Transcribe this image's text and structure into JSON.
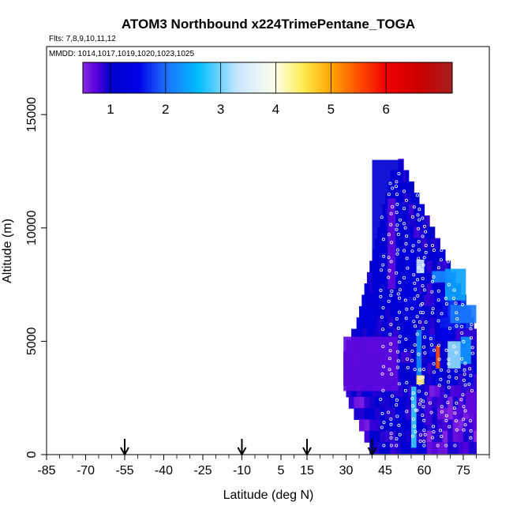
{
  "chart_data": {
    "type": "heatmap",
    "title": "ATOM3 Northbound x224TrimePentane_TOGA",
    "subtitle_flights": "Flts: 7,8,9,10,11,12",
    "subtitle_dates": "MMDD: 1014,1017,1019,1020,1023,1025",
    "xlabel": "Latitude (deg N)",
    "ylabel": "Altitude (m)",
    "xlim": [
      -85,
      85
    ],
    "ylim": [
      0,
      18000
    ],
    "x_ticks": [
      "-85",
      "-70",
      "-55",
      "-40",
      "-25",
      "-10",
      "5",
      "15",
      "30",
      "45",
      "60",
      "75"
    ],
    "y_ticks": [
      "0",
      "5000",
      "10000",
      "15000"
    ],
    "colorbar": {
      "ticks": [
        "1",
        "2",
        "3",
        "4",
        "5",
        "6"
      ],
      "range": [
        0.5,
        7.2
      ]
    },
    "arrows_lat": [
      -55,
      -10,
      15,
      40
    ],
    "cross_section": [
      {
        "alt": 12800,
        "lat_min": 50.0,
        "lat_max": 52.0
      },
      {
        "alt": 12300,
        "lat_min": 47.0,
        "lat_max": 54.0
      },
      {
        "alt": 11800,
        "lat_min": 46.0,
        "lat_max": 56.0
      },
      {
        "alt": 11300,
        "lat_min": 45.0,
        "lat_max": 58.0
      },
      {
        "alt": 10800,
        "lat_min": 44.0,
        "lat_max": 60.0
      },
      {
        "alt": 10300,
        "lat_min": 43.0,
        "lat_max": 62.0
      },
      {
        "alt": 9800,
        "lat_min": 42.0,
        "lat_max": 64.0
      },
      {
        "alt": 9300,
        "lat_min": 41.0,
        "lat_max": 66.0
      },
      {
        "alt": 8800,
        "lat_min": 40.0,
        "lat_max": 68.0
      },
      {
        "alt": 8300,
        "lat_min": 39.0,
        "lat_max": 70.0
      },
      {
        "alt": 7800,
        "lat_min": 38.0,
        "lat_max": 72.0
      },
      {
        "alt": 7300,
        "lat_min": 37.0,
        "lat_max": 74.0
      },
      {
        "alt": 6800,
        "lat_min": 36.0,
        "lat_max": 76.0
      },
      {
        "alt": 6300,
        "lat_min": 35.0,
        "lat_max": 78.0
      },
      {
        "alt": 5800,
        "lat_min": 34.0,
        "lat_max": 79.0
      },
      {
        "alt": 5300,
        "lat_min": 32.0,
        "lat_max": 80.0
      },
      {
        "alt": 4800,
        "lat_min": 30.0,
        "lat_max": 80.0
      },
      {
        "alt": 4300,
        "lat_min": 29.0,
        "lat_max": 80.0
      },
      {
        "alt": 3800,
        "lat_min": 29.0,
        "lat_max": 80.0
      },
      {
        "alt": 3300,
        "lat_min": 29.0,
        "lat_max": 80.0
      },
      {
        "alt": 2800,
        "lat_min": 30.0,
        "lat_max": 80.0
      },
      {
        "alt": 2300,
        "lat_min": 31.0,
        "lat_max": 80.0
      },
      {
        "alt": 1800,
        "lat_min": 33.0,
        "lat_max": 80.0
      },
      {
        "alt": 1300,
        "lat_min": 35.0,
        "lat_max": 80.0
      },
      {
        "alt": 800,
        "lat_min": 37.0,
        "lat_max": 80.0
      },
      {
        "alt": 300,
        "lat_min": 39.0,
        "lat_max": 80.0
      }
    ],
    "features": [
      {
        "lat_min": 29,
        "lat_max": 50,
        "alt_min": 2800,
        "alt_max": 5200,
        "value": 0.7
      },
      {
        "lat_min": 40,
        "lat_max": 52,
        "alt_min": 6500,
        "alt_max": 13000,
        "value": 1.1
      },
      {
        "lat_min": 52,
        "lat_max": 58,
        "alt_min": 6000,
        "alt_max": 9000,
        "value": 1.3
      },
      {
        "lat_min": 70,
        "lat_max": 80,
        "alt_min": 5800,
        "alt_max": 6600,
        "value": 2.1
      },
      {
        "lat_min": 68,
        "lat_max": 76,
        "alt_min": 6800,
        "alt_max": 8200,
        "value": 2.4
      },
      {
        "lat_min": 69,
        "lat_max": 74,
        "alt_min": 3800,
        "alt_max": 5000,
        "value": 3.1
      },
      {
        "lat_min": 74,
        "lat_max": 78,
        "alt_min": 4000,
        "alt_max": 5200,
        "value": 2.3
      },
      {
        "lat_min": 55,
        "lat_max": 57,
        "alt_min": 300,
        "alt_max": 3000,
        "value": 2.8
      },
      {
        "lat_min": 57,
        "lat_max": 60,
        "alt_min": 3100,
        "alt_max": 3500,
        "value": 4.4
      },
      {
        "lat_min": 57,
        "lat_max": 59,
        "alt_min": 3500,
        "alt_max": 5500,
        "value": 2.2
      },
      {
        "lat_min": 57,
        "lat_max": 60,
        "alt_min": 8000,
        "alt_max": 8600,
        "value": 3.3
      },
      {
        "lat_min": 62,
        "lat_max": 64,
        "alt_min": 4300,
        "alt_max": 5300,
        "value": 1.6
      },
      {
        "lat_min": 64.5,
        "lat_max": 66,
        "alt_min": 3800,
        "alt_max": 4800,
        "value": 5.5
      },
      {
        "lat_min": 63,
        "lat_max": 69,
        "alt_min": 7600,
        "alt_max": 8100,
        "value": 2.2
      },
      {
        "lat_min": 66,
        "lat_max": 70,
        "alt_min": 5000,
        "alt_max": 5600,
        "value": 1.5
      },
      {
        "lat_min": 76,
        "lat_max": 80,
        "alt_min": 1800,
        "alt_max": 2800,
        "value": 0.7
      },
      {
        "lat_min": 46,
        "lat_max": 49,
        "alt_min": 7300,
        "alt_max": 11300,
        "value": 0.7
      },
      {
        "lat_min": 60,
        "lat_max": 63,
        "alt_min": 1300,
        "alt_max": 2300,
        "value": 0.8
      }
    ]
  }
}
